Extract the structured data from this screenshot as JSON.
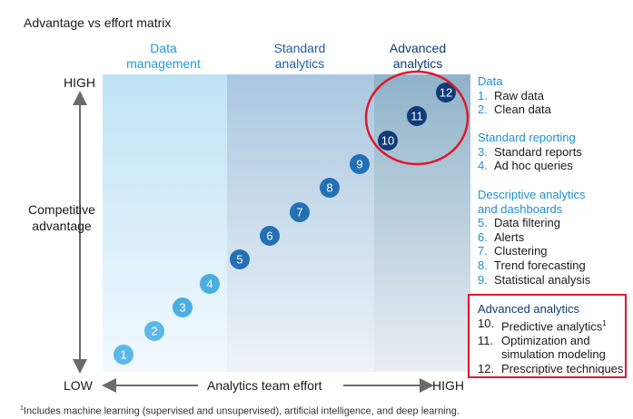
{
  "title": "Advantage vs effort matrix",
  "columns": [
    {
      "line1": "Data",
      "line2": "management",
      "color": "#1f9ad6"
    },
    {
      "line1": "Standard",
      "line2": "analytics",
      "color": "#1d5ea8"
    },
    {
      "line1": "Advanced",
      "line2": "analytics",
      "color": "#0f3c79"
    }
  ],
  "y_axis": {
    "high": "HIGH",
    "low": "LOW",
    "label_line1": "Competitive",
    "label_line2": "advantage"
  },
  "x_axis": {
    "low": "LOW",
    "high": "HIGH",
    "label": "Analytics team effort"
  },
  "points": [
    {
      "n": "1",
      "color": "#5bb8e8"
    },
    {
      "n": "2",
      "color": "#5bb8e8"
    },
    {
      "n": "3",
      "color": "#4aaee3"
    },
    {
      "n": "4",
      "color": "#4aaee3"
    },
    {
      "n": "5",
      "color": "#2470b5"
    },
    {
      "n": "6",
      "color": "#2470b5"
    },
    {
      "n": "7",
      "color": "#2470b5"
    },
    {
      "n": "8",
      "color": "#2470b5"
    },
    {
      "n": "9",
      "color": "#2470b5"
    },
    {
      "n": "10",
      "color": "#0f3c79"
    },
    {
      "n": "11",
      "color": "#0f3c79"
    },
    {
      "n": "12",
      "color": "#0f3c79"
    }
  ],
  "legend": {
    "data": {
      "heading": "Data",
      "items": [
        {
          "n": "1.",
          "text": "Raw data"
        },
        {
          "n": "2.",
          "text": "Clean data"
        }
      ]
    },
    "standard": {
      "heading": "Standard reporting",
      "items": [
        {
          "n": "3.",
          "text": "Standard reports"
        },
        {
          "n": "4.",
          "text": "Ad hoc queries"
        }
      ]
    },
    "descriptive": {
      "heading1": "Descriptive analytics",
      "heading2": "and dashboards",
      "items": [
        {
          "n": "5.",
          "text": "Data filtering"
        },
        {
          "n": "6.",
          "text": "Alerts"
        },
        {
          "n": "7.",
          "text": "Clustering"
        },
        {
          "n": "8.",
          "text": "Trend forecasting"
        },
        {
          "n": "9.",
          "text": "Statistical analysis"
        }
      ]
    },
    "advanced": {
      "heading": "Advanced analytics",
      "items": [
        {
          "n": "10.",
          "text": "Predictive analytics",
          "sup": "1"
        },
        {
          "n": "11.",
          "text": "Optimization and",
          "text2": "simulation modeling"
        },
        {
          "n": "12.",
          "text": "Prescriptive techniques"
        }
      ]
    }
  },
  "footnote": {
    "sup": "1",
    "text": "Includes machine learning (supervised and unsupervised), artificial intelligence, and deep learning."
  },
  "colors": {
    "highlight_red": "#e0182d",
    "header_blue": "#1f8fd1"
  }
}
